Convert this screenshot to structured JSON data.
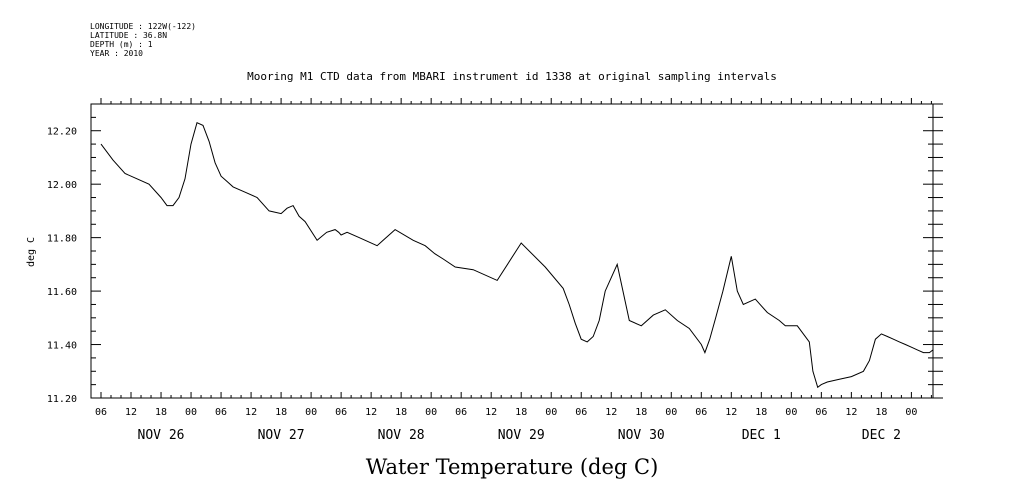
{
  "header": {
    "longitude": "LONGITUDE : 122W(-122)",
    "latitude": "LATITUDE : 36.8N",
    "depth": "DEPTH (m) : 1",
    "year": "YEAR : 2010"
  },
  "chart_data": {
    "type": "line",
    "title": "Mooring M1 CTD data from MBARI instrument id 1338 at original sampling intervals",
    "xlabel": "Water Temperature (deg C)",
    "ylabel": "deg C",
    "xlim": [
      -0.0833,
      6.93
    ],
    "ylim": [
      11.2,
      12.3
    ],
    "y_ticks": [
      11.2,
      11.4,
      11.6,
      11.8,
      12.0,
      12.2
    ],
    "y_tick_labels": [
      "11.20",
      "11.40",
      "11.60",
      "11.80",
      "12.00",
      "12.20"
    ],
    "hour_tick_labels": [
      "06",
      "12",
      "18",
      "00",
      "06",
      "12",
      "18",
      "00",
      "06",
      "12",
      "18",
      "00",
      "06",
      "12",
      "18",
      "00",
      "06",
      "12",
      "18",
      "00",
      "06",
      "12",
      "18",
      "00",
      "06",
      "12",
      "18",
      "00"
    ],
    "day_labels": [
      "NOV 26",
      "NOV 27",
      "NOV 28",
      "NOV 29",
      "NOV 30",
      "DEC 1",
      "DEC 2"
    ],
    "x_units": "days since Nov 26 00:00",
    "series": [
      {
        "name": "Water Temperature",
        "x": [
          0.0,
          0.1,
          0.2,
          0.3,
          0.4,
          0.5,
          0.55,
          0.6,
          0.65,
          0.7,
          0.75,
          0.8,
          0.85,
          0.9,
          0.95,
          0.98,
          1.0,
          1.05,
          1.1,
          1.2,
          1.3,
          1.4,
          1.5,
          1.55,
          1.6,
          1.65,
          1.7,
          1.8,
          1.88,
          1.95,
          1.98,
          2.0,
          2.05,
          2.15,
          2.3,
          2.45,
          2.6,
          2.7,
          2.78,
          2.85,
          2.95,
          3.1,
          3.3,
          3.5,
          3.7,
          3.85,
          3.9,
          3.95,
          4.0,
          4.05,
          4.1,
          4.15,
          4.2,
          4.3,
          4.4,
          4.5,
          4.6,
          4.7,
          4.8,
          4.9,
          5.0,
          5.03,
          5.07,
          5.12,
          5.18,
          5.25,
          5.3,
          5.35,
          5.45,
          5.55,
          5.65,
          5.7,
          5.8,
          5.9,
          5.93,
          5.97,
          6.0,
          6.05,
          6.15,
          6.25,
          6.35,
          6.4,
          6.45,
          6.5,
          6.55,
          6.6,
          6.65,
          6.7,
          6.75,
          6.8,
          6.85,
          6.9,
          6.93
        ],
        "y": [
          12.15,
          12.09,
          12.04,
          12.02,
          12.0,
          11.95,
          11.92,
          11.92,
          11.95,
          12.02,
          12.15,
          12.23,
          12.22,
          12.16,
          12.08,
          12.05,
          12.03,
          12.01,
          11.99,
          11.97,
          11.95,
          11.9,
          11.89,
          11.91,
          11.92,
          11.88,
          11.86,
          11.79,
          11.82,
          11.83,
          11.82,
          11.81,
          11.82,
          11.8,
          11.77,
          11.83,
          11.79,
          11.77,
          11.74,
          11.72,
          11.69,
          11.68,
          11.64,
          11.78,
          11.69,
          11.61,
          11.55,
          11.48,
          11.42,
          11.41,
          11.43,
          11.49,
          11.6,
          11.7,
          11.49,
          11.47,
          11.51,
          11.53,
          11.49,
          11.46,
          11.4,
          11.37,
          11.42,
          11.5,
          11.6,
          11.73,
          11.6,
          11.55,
          11.57,
          11.52,
          11.49,
          11.47,
          11.47,
          11.41,
          11.3,
          11.24,
          11.25,
          11.26,
          11.27,
          11.28,
          11.3,
          11.34,
          11.42,
          11.44,
          11.43,
          11.42,
          11.41,
          11.4,
          11.39,
          11.38,
          11.37,
          11.37,
          11.38
        ]
      }
    ]
  }
}
